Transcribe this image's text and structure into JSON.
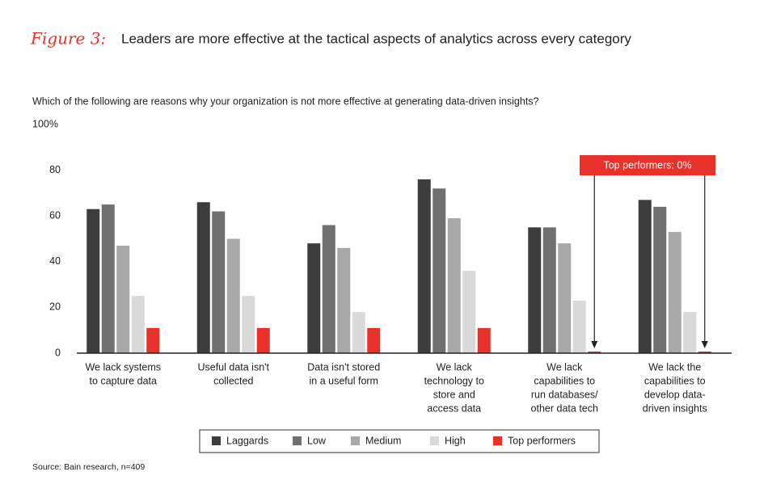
{
  "chart_data": {
    "type": "bar",
    "title_prefix": "Figure 3:",
    "title": "Leaders are more effective at the tactical aspects of analytics across every category",
    "subtitle": "Which of the following are reasons why your organization is not more effective at generating data-driven insights?",
    "annotation": "Top performers: 0%",
    "source": "Source: Bain research, n=409",
    "categories": [
      [
        "We lack systems",
        "to capture data"
      ],
      [
        "Useful data isn't",
        "collected"
      ],
      [
        "Data isn't stored",
        "in a useful form"
      ],
      [
        "We lack",
        "technology to",
        "store and",
        "access data"
      ],
      [
        "We lack",
        "capabilities to",
        "run databases/",
        "other data tech"
      ],
      [
        "We lack the",
        "capabilities to",
        "develop data-",
        "driven insights"
      ]
    ],
    "series": [
      {
        "name": "Laggards",
        "color": "#3d3d3d",
        "values": [
          63,
          66,
          48,
          76,
          55,
          67
        ]
      },
      {
        "name": "Low",
        "color": "#707070",
        "values": [
          65,
          62,
          56,
          72,
          55,
          64
        ]
      },
      {
        "name": "Medium",
        "color": "#a8a8a8",
        "values": [
          47,
          50,
          46,
          59,
          48,
          53
        ]
      },
      {
        "name": "High",
        "color": "#d9d9d9",
        "values": [
          25,
          25,
          18,
          36,
          23,
          18
        ]
      },
      {
        "name": "Top performers",
        "color": "#e8312a",
        "values": [
          11,
          11,
          11,
          11,
          0,
          0
        ]
      }
    ],
    "ylim": [
      0,
      100
    ],
    "yticks": [
      0,
      20,
      40,
      60,
      80,
      {
        "value": 100,
        "label": "100%"
      }
    ],
    "legend": "bottom"
  }
}
